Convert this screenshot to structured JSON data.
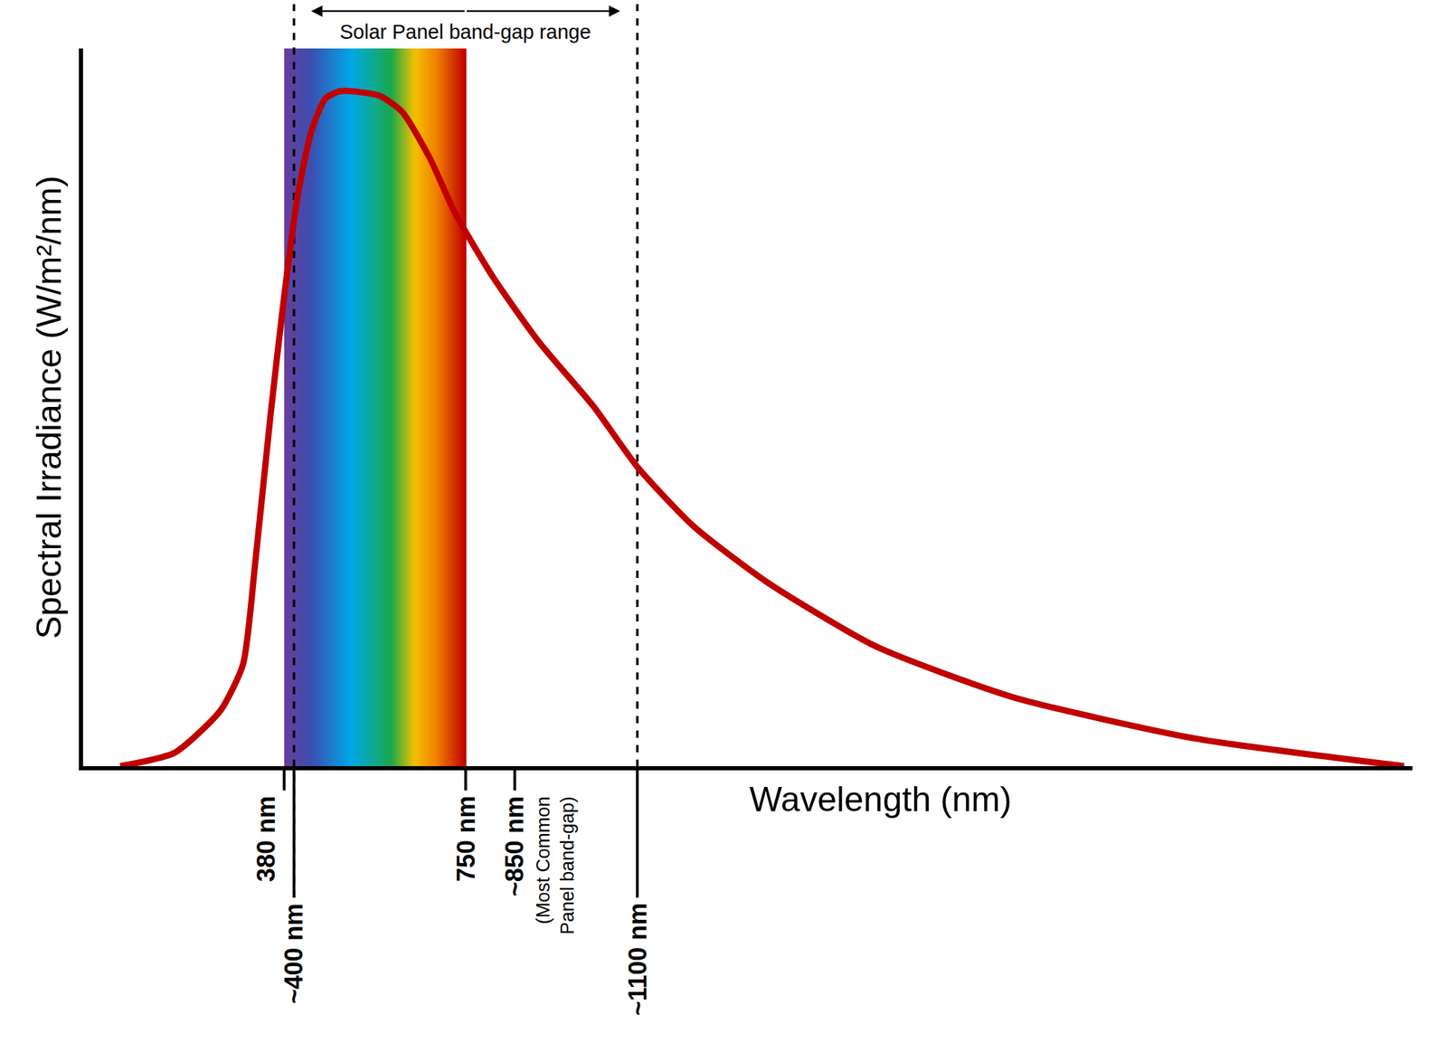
{
  "chart_data": {
    "type": "line",
    "x_label": "Wavelength (nm)",
    "y_label": "Spectral Irradiance (W/m²/nm)",
    "color": "#c00000",
    "x": [
      46,
      157,
      250,
      296,
      321,
      352,
      380,
      408,
      436,
      464,
      495,
      575,
      621,
      677,
      729,
      807,
      900,
      1011,
      1100,
      1215,
      1364,
      1586,
      1865,
      2236,
      2663
    ],
    "values": [
      0,
      2,
      8.2,
      15,
      30,
      51.7,
      69.4,
      84.4,
      93.9,
      98.6,
      99.7,
      99,
      96.6,
      89.8,
      81.6,
      72.1,
      62.6,
      53.1,
      44.2,
      35.4,
      27.2,
      17.7,
      10.2,
      4.1,
      0
    ],
    "xlim": [
      -30,
      2680
    ],
    "ylim": [
      0,
      106
    ],
    "xticks": [
      {
        "value": 380,
        "label": "380 nm"
      },
      {
        "value": 400,
        "label": "~400 nm"
      },
      {
        "value": 750,
        "label": "750 nm"
      },
      {
        "value": 850,
        "label": "~850 nm"
      },
      {
        "value": 1100,
        "label": "~1100 nm"
      }
    ],
    "yticks": [],
    "tick_labels": "x",
    "grid": false,
    "visible_band": {
      "from": 380,
      "to": 750
    },
    "bandgap_range": {
      "label": "Solar Panel band-gap range",
      "from": 400,
      "to": 1100
    },
    "annotations": [
      {
        "x": 850,
        "text": "(Most Common Panel band-gap)"
      }
    ]
  }
}
